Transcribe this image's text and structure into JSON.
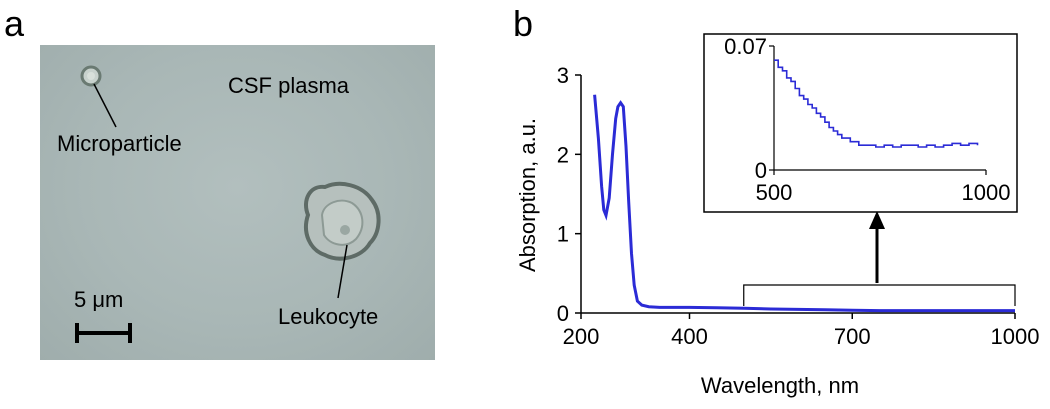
{
  "panel_a": {
    "letter": "a",
    "labels": {
      "medium": "CSF plasma",
      "microparticle": "Microparticle",
      "leukocyte": "Leukocyte",
      "scale_bar": "5 μm"
    },
    "colors": {
      "background": "#a9b7b6",
      "scale_bar": "#000000"
    }
  },
  "panel_b": {
    "letter": "b"
  },
  "chart_data": [
    {
      "type": "line",
      "ylabel": "Absorption, a.u.",
      "xlabel": "Wavelength, nm",
      "xlim": [
        200,
        1000
      ],
      "ylim": [
        0,
        3
      ],
      "xticks": [
        200,
        400,
        700,
        1000
      ],
      "yticks": [
        0,
        1,
        2,
        3
      ],
      "series": [
        {
          "color": "#2b2bd6",
          "x": [
            225,
            232,
            238,
            242,
            246,
            252,
            258,
            264,
            268,
            273,
            278,
            283,
            288,
            293,
            298,
            304,
            312,
            325,
            345,
            370,
            400,
            450,
            500,
            550,
            600,
            650,
            700,
            750,
            800,
            850,
            900,
            950,
            1000
          ],
          "y": [
            2.75,
            2.2,
            1.6,
            1.3,
            1.23,
            1.45,
            2.0,
            2.45,
            2.6,
            2.65,
            2.6,
            2.1,
            1.4,
            0.75,
            0.35,
            0.15,
            0.1,
            0.08,
            0.07,
            0.07,
            0.07,
            0.065,
            0.06,
            0.05,
            0.045,
            0.04,
            0.035,
            0.03,
            0.03,
            0.03,
            0.03,
            0.03,
            0.03
          ]
        }
      ],
      "bracket_range": [
        500,
        1000
      ]
    },
    {
      "type": "line",
      "xlim": [
        500,
        1000
      ],
      "ylim": [
        0,
        0.07
      ],
      "xticks": [
        500,
        1000
      ],
      "yticks": [
        0,
        0.07
      ],
      "ytick_labels": [
        "0",
        "0.07"
      ],
      "series": [
        {
          "color": "#2b2bd6",
          "x": [
            500,
            510,
            520,
            530,
            540,
            550,
            560,
            570,
            580,
            590,
            600,
            610,
            620,
            630,
            640,
            650,
            660,
            680,
            700,
            720,
            740,
            760,
            780,
            800,
            820,
            840,
            860,
            880,
            900,
            920,
            940,
            960,
            980
          ],
          "y": [
            0.062,
            0.058,
            0.056,
            0.052,
            0.05,
            0.046,
            0.042,
            0.04,
            0.037,
            0.035,
            0.032,
            0.03,
            0.027,
            0.024,
            0.022,
            0.02,
            0.018,
            0.016,
            0.014,
            0.014,
            0.013,
            0.014,
            0.013,
            0.014,
            0.014,
            0.013,
            0.014,
            0.013,
            0.014,
            0.015,
            0.014,
            0.015,
            0.014
          ]
        }
      ]
    }
  ]
}
